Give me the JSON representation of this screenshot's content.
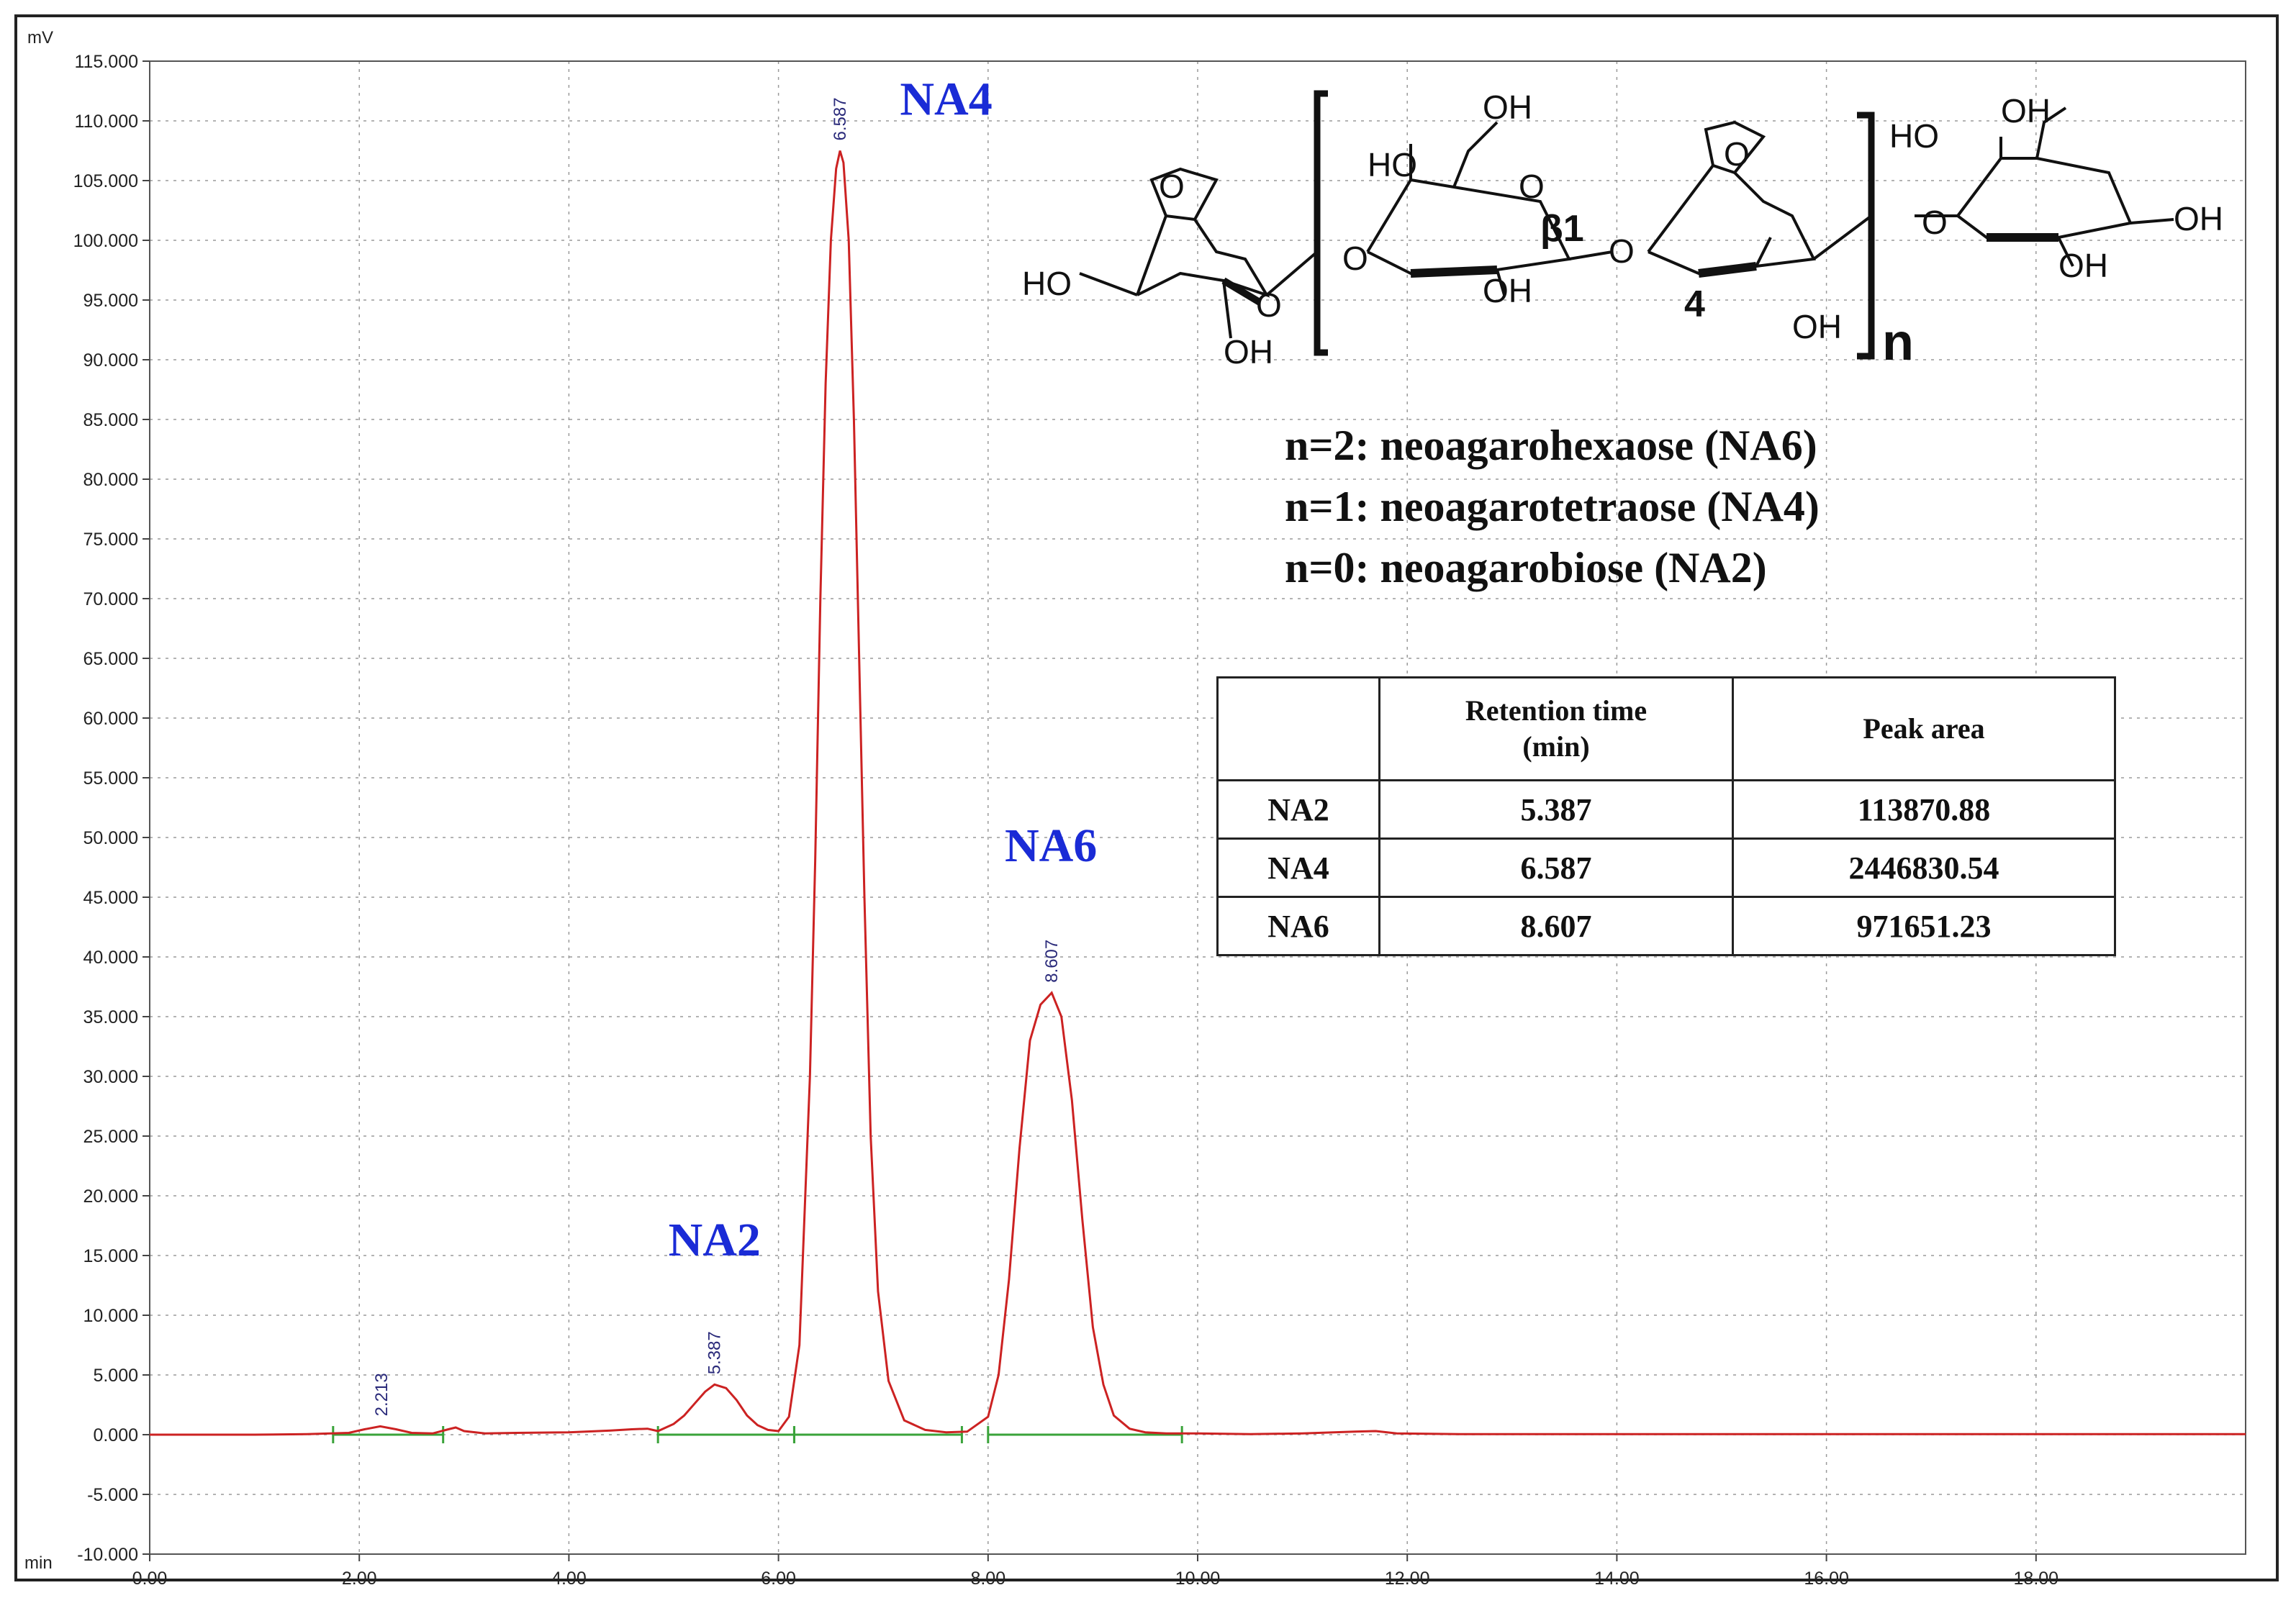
{
  "chart_data": {
    "type": "line",
    "title": "",
    "xlabel": "",
    "ylabel": "",
    "x_unit": "min",
    "y_unit": "mV",
    "xlim": [
      0,
      20
    ],
    "ylim": [
      -10,
      115
    ],
    "x_ticks": [
      "0.00",
      "2.00",
      "4.00",
      "6.00",
      "8.00",
      "10.00",
      "12.00",
      "14.00",
      "16.00",
      "18.00"
    ],
    "y_ticks": [
      "-10.000",
      "-5.000",
      "0.000",
      "5.000",
      "10.000",
      "15.000",
      "20.000",
      "25.000",
      "30.000",
      "35.000",
      "40.000",
      "45.000",
      "50.000",
      "55.000",
      "60.000",
      "65.000",
      "70.000",
      "75.000",
      "80.000",
      "85.000",
      "90.000",
      "95.000",
      "100.000",
      "105.000",
      "110.000",
      "115.000"
    ],
    "grid": true,
    "series": [
      {
        "color": "#cc2222",
        "x": [
          0.0,
          0.5,
          1.0,
          1.5,
          1.9,
          2.05,
          2.2,
          2.35,
          2.5,
          2.7,
          2.85,
          2.92,
          3.0,
          3.2,
          3.5,
          4.0,
          4.4,
          4.6,
          4.75,
          4.85,
          5.0,
          5.1,
          5.2,
          5.3,
          5.39,
          5.5,
          5.6,
          5.7,
          5.8,
          5.9,
          6.0,
          6.1,
          6.2,
          6.3,
          6.35,
          6.4,
          6.45,
          6.5,
          6.55,
          6.587,
          6.62,
          6.67,
          6.72,
          6.77,
          6.82,
          6.88,
          6.95,
          7.05,
          7.2,
          7.4,
          7.6,
          7.8,
          8.0,
          8.1,
          8.2,
          8.3,
          8.4,
          8.5,
          8.607,
          8.7,
          8.8,
          8.9,
          9.0,
          9.1,
          9.2,
          9.35,
          9.5,
          9.7,
          10.0,
          10.5,
          11.0,
          11.5,
          11.7,
          11.9,
          12.5,
          14.0,
          16.0,
          18.0,
          20.0
        ],
        "y": [
          0.0,
          0.0,
          0.0,
          0.05,
          0.15,
          0.45,
          0.7,
          0.45,
          0.15,
          0.1,
          0.45,
          0.6,
          0.3,
          0.1,
          0.15,
          0.2,
          0.35,
          0.45,
          0.5,
          0.3,
          0.9,
          1.6,
          2.6,
          3.6,
          4.2,
          3.9,
          2.9,
          1.6,
          0.8,
          0.4,
          0.3,
          1.5,
          7.5,
          30,
          48,
          70,
          88,
          100,
          106,
          107.5,
          106.5,
          100,
          85,
          65,
          45,
          25,
          12,
          4.5,
          1.2,
          0.4,
          0.2,
          0.25,
          1.5,
          5.0,
          13,
          24,
          33,
          36,
          37.0,
          35,
          28,
          18,
          9,
          4.2,
          1.6,
          0.5,
          0.2,
          0.1,
          0.1,
          0.05,
          0.1,
          0.25,
          0.3,
          0.1,
          0.05,
          0.05,
          0.05,
          0.05,
          0.05
        ]
      }
    ],
    "baseline_segments": [
      [
        1.75,
        2.8
      ],
      [
        4.85,
        6.15
      ],
      [
        6.15,
        7.75
      ],
      [
        8.0,
        9.85
      ]
    ],
    "peak_labels": [
      {
        "x": 2.213,
        "y": 0.7,
        "text": "2.213"
      },
      {
        "x": 5.387,
        "y": 4.2,
        "text": "5.387"
      },
      {
        "x": 6.587,
        "y": 107.5,
        "text": "6.587"
      },
      {
        "x": 8.607,
        "y": 37.0,
        "text": "8.607"
      }
    ],
    "annotations": [
      {
        "text": "NA2",
        "x": 5.39,
        "y": 15.0
      },
      {
        "text": "NA4",
        "x": 7.6,
        "y": 110.5
      },
      {
        "text": "NA6",
        "x": 8.6,
        "y": 48.0
      }
    ],
    "accent_color": "#1a2bd6",
    "baseline_color": "#3aa33a"
  },
  "structure": {
    "labels": [
      "HO",
      "OH",
      "O",
      "O",
      "HO",
      "OH",
      "O",
      "β1",
      "O",
      "OH",
      "O",
      "4",
      "OH",
      "O",
      "HO",
      "OH",
      "O",
      "OH",
      "OH",
      "n"
    ]
  },
  "legend": {
    "lines": [
      "n=2: neoagarohexaose (NA6)",
      "n=1: neoagarotetraose (NA4)",
      "n=0: neoagarobiose (NA2)"
    ]
  },
  "table": {
    "headers": [
      "",
      "Retention  time\n(min)",
      "Peak area"
    ],
    "rows": [
      [
        "NA2",
        "5.387",
        "113870.88"
      ],
      [
        "NA4",
        "6.587",
        "2446830.54"
      ],
      [
        "NA6",
        "8.607",
        "971651.23"
      ]
    ]
  }
}
